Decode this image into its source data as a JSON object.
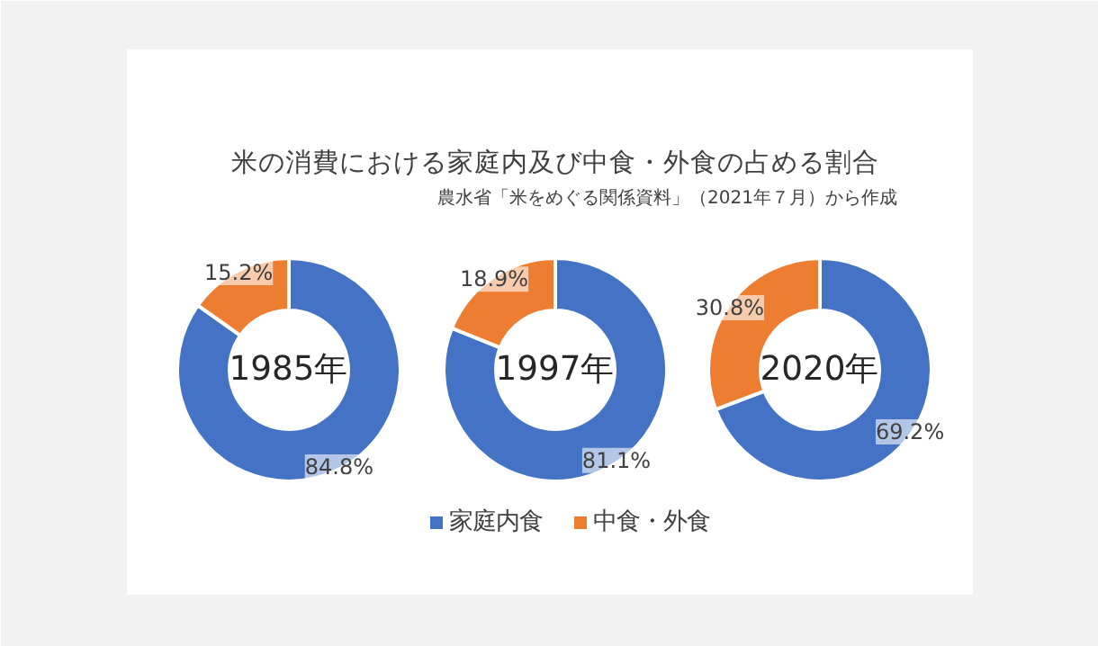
{
  "chart_data": [
    {
      "type": "donut",
      "title": "米の消費における家庭内及び中食・外食の占める割合",
      "subtitle": "農水省「米をめぐる関係資料」（2021年７月）から作成",
      "annotations": [
        "1985年"
      ],
      "categories": [
        "家庭内食",
        "中食・外食"
      ],
      "values": [
        84.8,
        15.2
      ],
      "value_labels": [
        "84.8%",
        "15.2%"
      ],
      "colors": [
        "#4472c4",
        "#ed7d31"
      ],
      "legend": "bottom"
    },
    {
      "type": "donut",
      "annotations": [
        "1997年"
      ],
      "categories": [
        null,
        null
      ],
      "values": [
        81.1,
        18.9
      ],
      "value_labels": [
        "81.1%",
        "18.9%"
      ],
      "colors": [
        "#4472c4",
        "#ed7d31"
      ]
    },
    {
      "type": "donut",
      "annotations": [
        "2020年"
      ],
      "categories": [
        null,
        null
      ],
      "values": [
        69.2,
        30.8
      ],
      "value_labels": [
        "69.2%",
        "30.8%"
      ],
      "colors": [
        "#4472c4",
        "#ed7d31"
      ]
    }
  ]
}
